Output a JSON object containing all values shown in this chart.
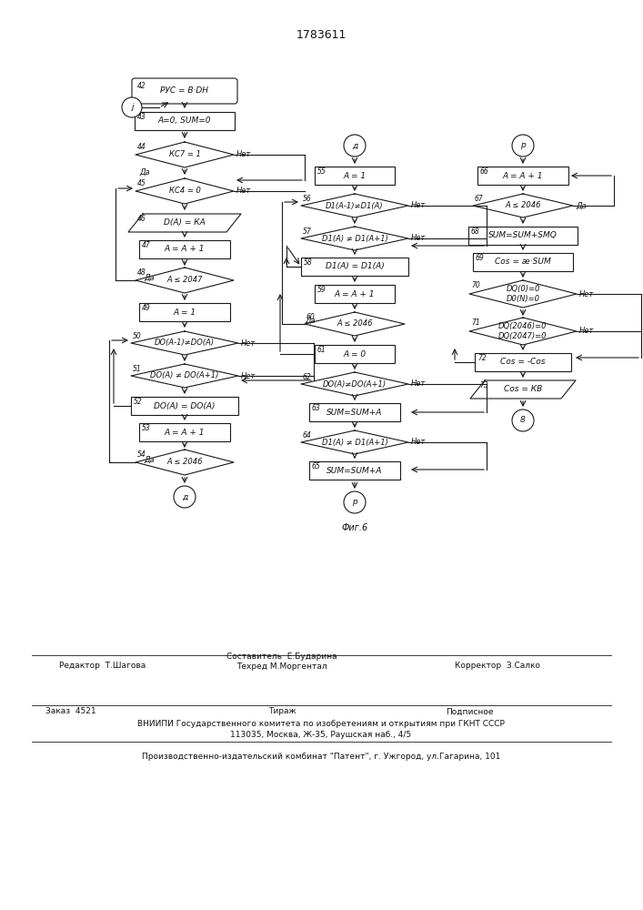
{
  "title": "1783611",
  "background_color": "#ffffff",
  "line_color": "#1a1a1a",
  "text_color": "#111111",
  "font_size": 6.5,
  "fig_caption": "Фиг.6",
  "footer": {
    "line1_left": "Редактор  Т.Шагова",
    "line1_mid": "Составитель  Е.Бударина\nТехред М.Моргентал",
    "line1_right": "Корректор  З.Салко",
    "line2_left": "Заказ  4521",
    "line2_mid": "Тираж",
    "line2_right": "Подписное",
    "line3": "ВНИИПИ Государственного комитета по изобретениям и открытиям при ГКНТ СССР",
    "line4": "113035, Москва, Ж-35, Раушская наб., 4/5",
    "line5": "Производственно-издательский комбинат \"Патент\", г. Ужгород, ул.Гагарина, 101"
  }
}
